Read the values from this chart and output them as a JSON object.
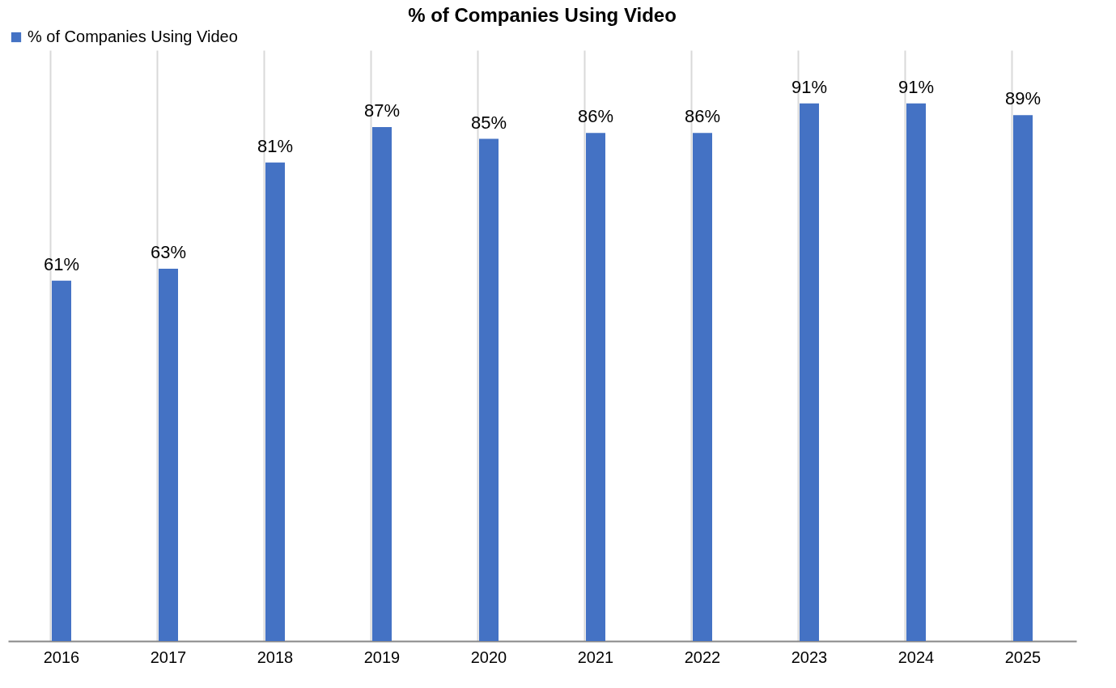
{
  "chart_data": {
    "type": "bar",
    "title": "% of Companies Using Video",
    "categories": [
      "2016",
      "2017",
      "2018",
      "2019",
      "2020",
      "2021",
      "2022",
      "2023",
      "2024",
      "2025"
    ],
    "series": [
      {
        "name": "% of Companies Using Video",
        "color": "#4472c4",
        "values": [
          61,
          63,
          81,
          87,
          85,
          86,
          86,
          91,
          91,
          89
        ],
        "value_labels": [
          "61%",
          "63%",
          "81%",
          "87%",
          "85%",
          "86%",
          "86%",
          "91%",
          "91%",
          "89%"
        ]
      }
    ],
    "ylim": [
      0,
      100
    ],
    "grid": "x",
    "legend": "top",
    "tick_labels": "x"
  }
}
